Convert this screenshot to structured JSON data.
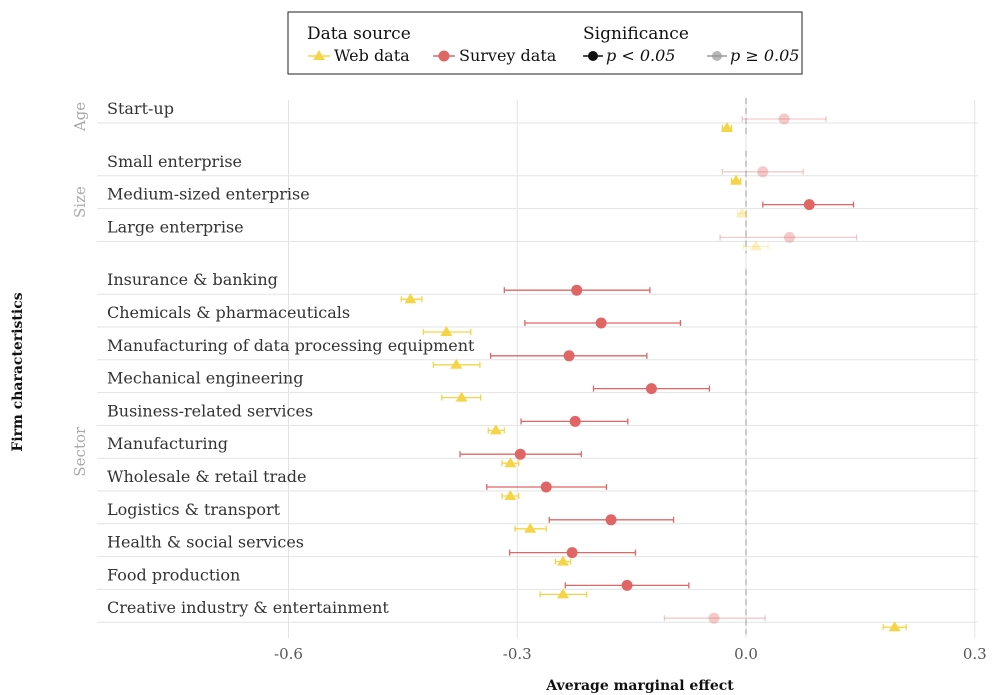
{
  "chart_data": {
    "type": "scatter",
    "subtype": "coefficient-plot",
    "xlabel": "Average marginal effect",
    "ylabel": "Firm characteristics",
    "xlim": [
      -0.86,
      0.3
    ],
    "xticks": [
      -0.6,
      -0.3,
      0.0,
      0.3
    ],
    "xtick_labels": [
      "-0.6",
      "-0.3",
      "0.0",
      "0.3"
    ],
    "reference_line": 0.0,
    "grid": true,
    "legend": {
      "placement": "top-center",
      "source_title": "Data source",
      "significance_title": "Significance",
      "web_label": "Web data",
      "survey_label": "Survey data",
      "sig_label": "p < 0.05",
      "nonsig_label": "p ≥ 0.05"
    },
    "colors": {
      "web": "#f5d547",
      "survey": "#e06666",
      "sig": "#111111",
      "nonsig": "#999999"
    },
    "groups": [
      {
        "name": "Age",
        "items": [
          {
            "label": "Start-up",
            "web": {
              "est": -0.025,
              "lo": -0.031,
              "hi": -0.019,
              "sig": true
            },
            "survey": {
              "est": 0.05,
              "lo": -0.005,
              "hi": 0.105,
              "sig": false
            }
          }
        ]
      },
      {
        "name": "Size",
        "items": [
          {
            "label": "Small enterprise",
            "web": {
              "est": -0.013,
              "lo": -0.019,
              "hi": -0.007,
              "sig": true
            },
            "survey": {
              "est": 0.022,
              "lo": -0.031,
              "hi": 0.075,
              "sig": false
            }
          },
          {
            "label": "Medium-sized enterprise",
            "web": {
              "est": -0.005,
              "lo": -0.011,
              "hi": 0.001,
              "sig": false
            },
            "survey": {
              "est": 0.083,
              "lo": 0.022,
              "hi": 0.141,
              "sig": true
            }
          },
          {
            "label": "Large enterprise",
            "web": {
              "est": 0.013,
              "lo": -0.003,
              "hi": 0.029,
              "sig": false
            },
            "survey": {
              "est": 0.057,
              "lo": -0.034,
              "hi": 0.145,
              "sig": false
            }
          }
        ]
      },
      {
        "name": "Sector",
        "items": [
          {
            "label": "Insurance & banking",
            "web": {
              "est": -0.44,
              "lo": -0.452,
              "hi": -0.425,
              "sig": true
            },
            "survey": {
              "est": -0.222,
              "lo": -0.317,
              "hi": -0.126,
              "sig": true
            }
          },
          {
            "label": "Chemicals & pharmaceuticals",
            "web": {
              "est": -0.393,
              "lo": -0.423,
              "hi": -0.361,
              "sig": true
            },
            "survey": {
              "est": -0.19,
              "lo": -0.29,
              "hi": -0.086,
              "sig": true
            }
          },
          {
            "label": "Manufacturing of data processing equipment",
            "web": {
              "est": -0.38,
              "lo": -0.41,
              "hi": -0.349,
              "sig": true
            },
            "survey": {
              "est": -0.232,
              "lo": -0.335,
              "hi": -0.13,
              "sig": true
            }
          },
          {
            "label": "Mechanical engineering",
            "web": {
              "est": -0.373,
              "lo": -0.399,
              "hi": -0.348,
              "sig": true
            },
            "survey": {
              "est": -0.124,
              "lo": -0.2,
              "hi": -0.048,
              "sig": true
            }
          },
          {
            "label": "Business-related services",
            "web": {
              "est": -0.328,
              "lo": -0.338,
              "hi": -0.317,
              "sig": true
            },
            "survey": {
              "est": -0.224,
              "lo": -0.295,
              "hi": -0.155,
              "sig": true
            }
          },
          {
            "label": "Manufacturing",
            "web": {
              "est": -0.309,
              "lo": -0.32,
              "hi": -0.298,
              "sig": true
            },
            "survey": {
              "est": -0.296,
              "lo": -0.375,
              "hi": -0.216,
              "sig": true
            }
          },
          {
            "label": "Wholesale & retail trade",
            "web": {
              "est": -0.309,
              "lo": -0.32,
              "hi": -0.298,
              "sig": true
            },
            "survey": {
              "est": -0.262,
              "lo": -0.34,
              "hi": -0.183,
              "sig": true
            }
          },
          {
            "label": "Logistics & transport",
            "web": {
              "est": -0.283,
              "lo": -0.303,
              "hi": -0.262,
              "sig": true
            },
            "survey": {
              "est": -0.177,
              "lo": -0.258,
              "hi": -0.095,
              "sig": true
            }
          },
          {
            "label": "Health & social services",
            "web": {
              "est": -0.24,
              "lo": -0.25,
              "hi": -0.23,
              "sig": true
            },
            "survey": {
              "est": -0.228,
              "lo": -0.31,
              "hi": -0.145,
              "sig": true
            }
          },
          {
            "label": "Food production",
            "web": {
              "est": -0.24,
              "lo": -0.27,
              "hi": -0.209,
              "sig": true
            },
            "survey": {
              "est": -0.156,
              "lo": -0.237,
              "hi": -0.075,
              "sig": true
            }
          },
          {
            "label": "Creative industry & entertainment",
            "web": {
              "est": 0.195,
              "lo": 0.18,
              "hi": 0.21,
              "sig": true
            },
            "survey": {
              "est": -0.042,
              "lo": -0.107,
              "hi": 0.025,
              "sig": false
            }
          }
        ]
      }
    ]
  }
}
